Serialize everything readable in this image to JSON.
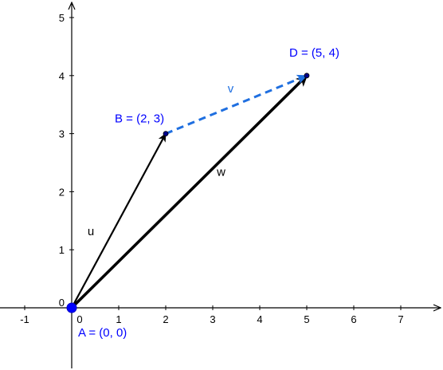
{
  "axes": {
    "x_ticks": [
      "-1",
      "0",
      "1",
      "2",
      "3",
      "4",
      "5",
      "6",
      "7"
    ],
    "y_ticks": [
      "0",
      "1",
      "2",
      "3",
      "4",
      "5"
    ],
    "x_range": [
      -1.5,
      7.7
    ],
    "y_range": [
      -1.1,
      5.3
    ]
  },
  "points": [
    {
      "id": "A",
      "label": "A = (0, 0)",
      "x": 0,
      "y": 0,
      "color": "#0000ff"
    },
    {
      "id": "B",
      "label": "B = (2, 3)",
      "x": 2,
      "y": 3,
      "color": "#00008b"
    },
    {
      "id": "D",
      "label": "D = (5, 4)",
      "x": 5,
      "y": 4,
      "color": "#00008b"
    }
  ],
  "vectors": [
    {
      "name": "u",
      "from": "A",
      "to": "B",
      "color": "#000000",
      "style": "solid"
    },
    {
      "name": "w",
      "from": "A",
      "to": "D",
      "color": "#000000",
      "style": "solid-thick"
    },
    {
      "name": "v",
      "from": "B",
      "to": "D",
      "color": "#1f6fe0",
      "style": "dashed"
    }
  ],
  "colors": {
    "axis": "#000000",
    "point_label": "#0000ff",
    "dashed_vector": "#1f6fe0"
  }
}
